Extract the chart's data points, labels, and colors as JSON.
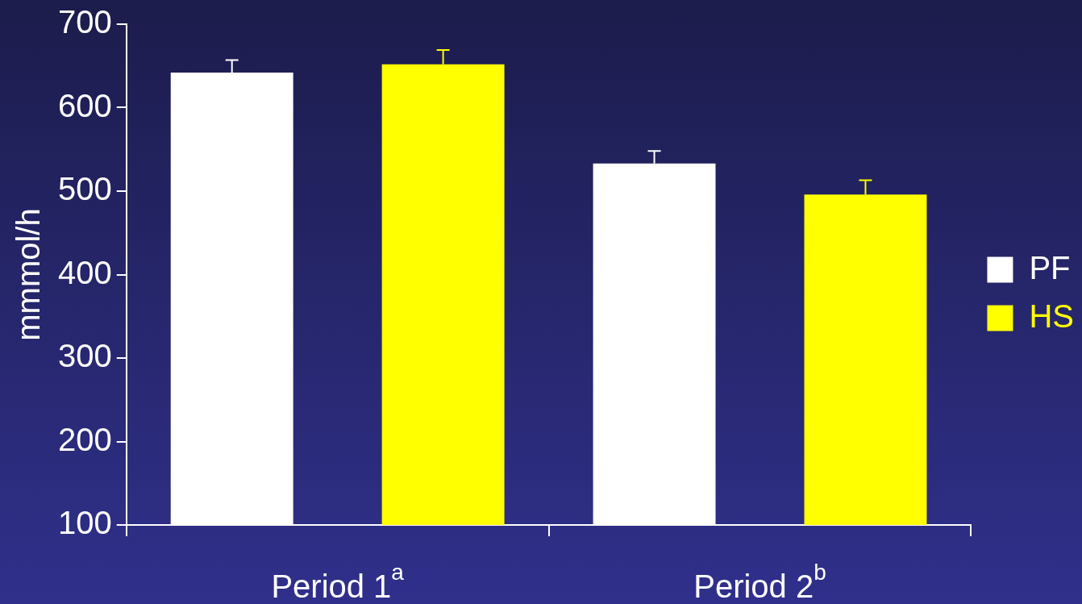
{
  "chart_data": {
    "type": "bar",
    "ylabel": "mmmol/h",
    "categories": [
      "Period 1$^{a}$",
      "Period 2$^{b}$"
    ],
    "series": [
      {
        "name": "PF",
        "color": "#ffffff",
        "values": [
          642,
          533
        ],
        "errors": [
          [
            642,
            657
          ],
          [
            533,
            548
          ]
        ]
      },
      {
        "name": "HS",
        "color": "#ffff00",
        "values": [
          652,
          496
        ],
        "errors": [
          [
            652,
            669
          ],
          [
            496,
            513
          ]
        ]
      }
    ],
    "ylim": [
      100,
      700
    ],
    "yticks": [
      100,
      200,
      300,
      400,
      500,
      600,
      700
    ],
    "grid": false,
    "legend": "right"
  }
}
